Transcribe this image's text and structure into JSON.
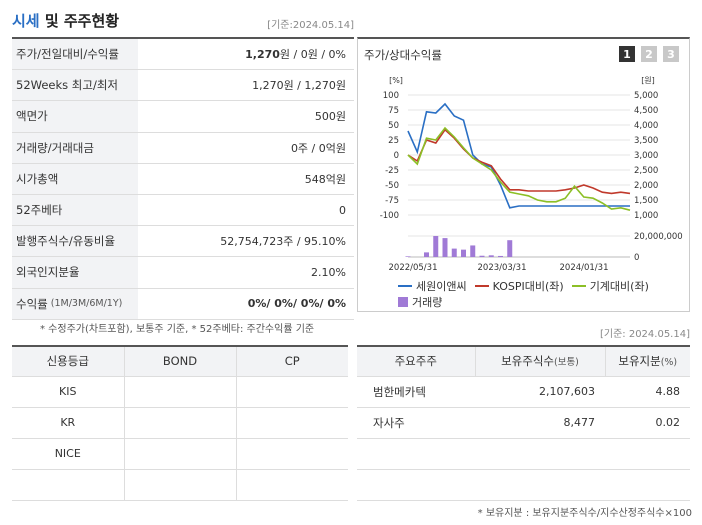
{
  "header": {
    "title_main": "시세",
    "title_rest": " 및 주주현황",
    "base_date": "[기준:2024.05.14]"
  },
  "stock_rows": [
    {
      "label": "주가/전일대비/수익률",
      "value_bold": "1,270",
      "value_rest": "원 / 0원 / 0%"
    },
    {
      "label": "52Weeks 최고/최저",
      "value": "1,270원 / 1,270원"
    },
    {
      "label": "액면가",
      "value": "500원"
    },
    {
      "label": "거래량/거래대금",
      "value": "0주 / 0억원"
    },
    {
      "label": "시가총액",
      "value": "548억원"
    },
    {
      "label": "52주베타",
      "value": "0"
    },
    {
      "label": "발행주식수/유동비율",
      "value": "52,754,723주 / 95.10%"
    },
    {
      "label": "외국인지분율",
      "value": "2.10%"
    },
    {
      "label": "수익률",
      "label_small": "(1M/3M/6M/1Y)",
      "value_bold": "0%/ 0%/ 0%/ 0%"
    }
  ],
  "footnote1": "* 수정주가(차트포함), 보통주 기준, * 52주베타: 주간수익률 기준",
  "chart": {
    "title": "주가/상대수익률",
    "pages": [
      "1",
      "2",
      "3"
    ],
    "active_page": 0,
    "left_unit": "[%]",
    "right_unit": "[원]",
    "vol_label": "20,000,000",
    "vol_zero": "0",
    "legend": [
      {
        "name": "세원이앤씨",
        "color": "#2a6fc4",
        "kind": "line"
      },
      {
        "name": "KOSPI대비(좌)",
        "color": "#c0392b",
        "kind": "line"
      },
      {
        "name": "기계대비(좌)",
        "color": "#8cbf26",
        "kind": "line"
      },
      {
        "name": "거래량",
        "color": "#a07ad6",
        "kind": "box"
      }
    ]
  },
  "chart_data": {
    "type": "line",
    "x_ticks": [
      "2022/05/31",
      "2023/03/31",
      "2024/01/31"
    ],
    "y_left": {
      "min": -100,
      "max": 100,
      "ticks": [
        "100",
        "75",
        "50",
        "25",
        "0",
        "-25",
        "-50",
        "-75",
        "-100"
      ]
    },
    "y_right": {
      "min": 1000,
      "max": 5000,
      "ticks": [
        "5,000",
        "4,500",
        "4,000",
        "3,500",
        "3,000",
        "2,500",
        "2,000",
        "1,500",
        "1,000"
      ]
    },
    "series": [
      {
        "name": "세원이앤씨",
        "color": "#2a6fc4",
        "values": [
          40,
          5,
          72,
          70,
          85,
          65,
          58,
          0,
          -15,
          -20,
          -50,
          -88,
          -85,
          -85,
          -85,
          -85,
          -85,
          -85,
          -85,
          -85,
          -85,
          -85,
          -85,
          -85,
          -85
        ]
      },
      {
        "name": "KOSPI대비(좌)",
        "color": "#c0392b",
        "values": [
          0,
          -10,
          25,
          20,
          42,
          28,
          10,
          -5,
          -12,
          -18,
          -40,
          -58,
          -58,
          -60,
          -60,
          -60,
          -60,
          -58,
          -55,
          -50,
          -55,
          -62,
          -64,
          -62,
          -64
        ]
      },
      {
        "name": "기계대비(좌)",
        "color": "#8cbf26",
        "values": [
          0,
          -15,
          28,
          25,
          45,
          30,
          12,
          -5,
          -15,
          -25,
          -45,
          -62,
          -65,
          -68,
          -75,
          -78,
          -78,
          -72,
          -52,
          -70,
          -72,
          -80,
          -90,
          -88,
          -92
        ]
      }
    ],
    "volume": [
      0.03,
      0,
      0.22,
      1.0,
      0.9,
      0.4,
      0.35,
      0.55,
      0.06,
      0.08,
      0.05,
      0.8,
      0,
      0,
      0,
      0,
      0,
      0,
      0,
      0,
      0,
      0,
      0,
      0,
      0
    ]
  },
  "basedate2": "[기준: 2024.05.14]",
  "credit": {
    "headers": [
      "신용등급",
      "BOND",
      "CP"
    ],
    "rows": [
      [
        "KIS",
        "",
        ""
      ],
      [
        "KR",
        "",
        ""
      ],
      [
        "NICE",
        "",
        ""
      ],
      [
        "",
        "",
        ""
      ]
    ]
  },
  "holders": {
    "headers": [
      "주요주주",
      "보유주식수",
      "(보통)",
      "보유지분",
      "(%)"
    ],
    "rows": [
      {
        "name": "범한메카텍",
        "shares": "2,107,603",
        "pct": "4.88"
      },
      {
        "name": "자사주",
        "shares": "8,477",
        "pct": "0.02"
      },
      {
        "name": "",
        "shares": "",
        "pct": ""
      },
      {
        "name": "",
        "shares": "",
        "pct": ""
      }
    ]
  },
  "footnote2": "* 보유지분 : 보유지분주식수/지수산정주식수×100"
}
